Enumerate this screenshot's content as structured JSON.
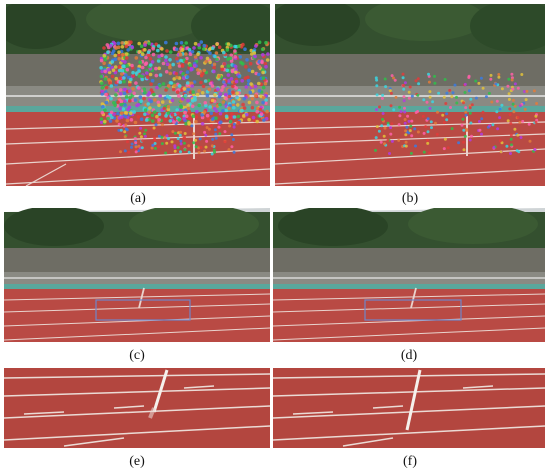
{
  "figure": {
    "panels": [
      {
        "id": "a",
        "caption": "(a)",
        "content": "track-with-dense-feature-points"
      },
      {
        "id": "b",
        "caption": "(b)",
        "content": "track-with-sparse-feature-points"
      },
      {
        "id": "c",
        "caption": "(c)",
        "content": "stitched-track-with-roi-box"
      },
      {
        "id": "d",
        "caption": "(d)",
        "content": "stitched-track-with-roi-box"
      },
      {
        "id": "e",
        "caption": "(e)",
        "content": "track-closeup-with-blur-artifact"
      },
      {
        "id": "f",
        "caption": "(f)",
        "content": "track-closeup-clean"
      }
    ],
    "colors": {
      "track": "#b94a44",
      "trees": "#2f4a2c",
      "wall": "#6b6b63",
      "sky": "#d9dde0",
      "lane_line": "#f2ece6",
      "roi_box": "#6f86c9"
    }
  }
}
